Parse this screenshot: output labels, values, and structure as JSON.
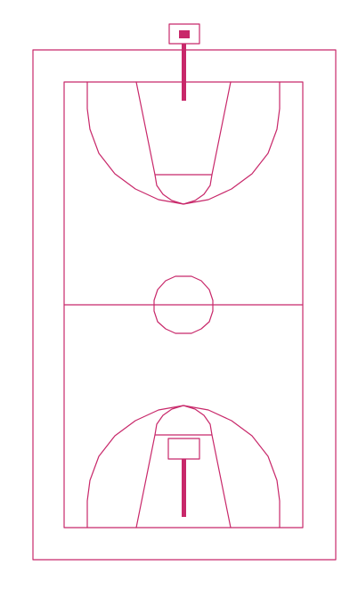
{
  "colors": {
    "line": "#c8286a",
    "background": "#ffffff"
  },
  "diagram": {
    "type": "basketball-court-top-view",
    "orientation": "vertical"
  }
}
